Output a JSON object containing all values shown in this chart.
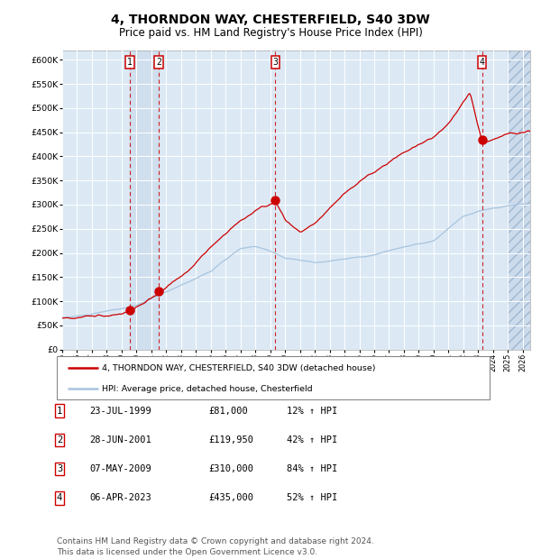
{
  "title": "4, THORNDON WAY, CHESTERFIELD, S40 3DW",
  "subtitle": "Price paid vs. HM Land Registry's House Price Index (HPI)",
  "xlim_start": 1995.0,
  "xlim_end": 2026.5,
  "ylim_min": 0,
  "ylim_max": 620000,
  "yticks": [
    0,
    50000,
    100000,
    150000,
    200000,
    250000,
    300000,
    350000,
    400000,
    450000,
    500000,
    550000,
    600000
  ],
  "ytick_labels": [
    "£0",
    "£50K",
    "£100K",
    "£150K",
    "£200K",
    "£250K",
    "£300K",
    "£350K",
    "£400K",
    "£450K",
    "£500K",
    "£550K",
    "£600K"
  ],
  "hpi_color": "#a8c4de",
  "property_color": "#cc0000",
  "plot_bg_color": "#dce9f5",
  "grid_color": "#ffffff",
  "sale_dates": [
    1999.55,
    2001.49,
    2009.35,
    2023.26
  ],
  "sale_prices": [
    81000,
    119950,
    310000,
    435000
  ],
  "sale_labels": [
    "1",
    "2",
    "3",
    "4"
  ],
  "legend_property_label": "4, THORNDON WAY, CHESTERFIELD, S40 3DW (detached house)",
  "legend_hpi_label": "HPI: Average price, detached house, Chesterfield",
  "table_data": [
    [
      "1",
      "23-JUL-1999",
      "£81,000",
      "12% ↑ HPI"
    ],
    [
      "2",
      "28-JUN-2001",
      "£119,950",
      "42% ↑ HPI"
    ],
    [
      "3",
      "07-MAY-2009",
      "£310,000",
      "84% ↑ HPI"
    ],
    [
      "4",
      "06-APR-2023",
      "£435,000",
      "52% ↑ HPI"
    ]
  ],
  "footnote": "Contains HM Land Registry data © Crown copyright and database right 2024.\nThis data is licensed under the Open Government Licence v3.0.",
  "title_fontsize": 10,
  "subtitle_fontsize": 8.5,
  "axis_fontsize": 7,
  "footnote_fontsize": 6.5
}
